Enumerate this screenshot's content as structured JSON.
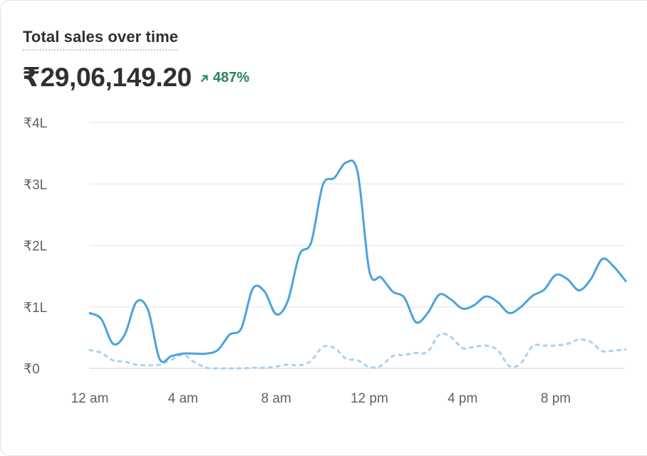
{
  "header": {
    "title": "Total sales over time",
    "total": "₹29,06,149.20",
    "change": "487%",
    "change_direction": "up",
    "change_color": "#29845a"
  },
  "chart_data": {
    "type": "line",
    "title": "Total sales over time",
    "xlabel": "",
    "ylabel": "",
    "x_tick_labels": [
      "12 am",
      "4 am",
      "8 am",
      "12 pm",
      "4 pm",
      "8 pm"
    ],
    "y_tick_labels": [
      "₹0",
      "₹1L",
      "₹2L",
      "₹3L",
      "₹4L"
    ],
    "y_tick_values": [
      0,
      100000,
      200000,
      300000,
      400000
    ],
    "ylim": [
      0,
      400000
    ],
    "grid": true,
    "legend": "none",
    "series": [
      {
        "style": "solid",
        "color": "#4aa3df",
        "points": [
          [
            0.0,
            90000
          ],
          [
            0.5,
            80000
          ],
          [
            1.0,
            40000
          ],
          [
            1.5,
            55000
          ],
          [
            2.0,
            108000
          ],
          [
            2.5,
            95000
          ],
          [
            3.0,
            15000
          ],
          [
            3.5,
            20000
          ],
          [
            4.0,
            24000
          ],
          [
            4.5,
            24000
          ],
          [
            5.0,
            24000
          ],
          [
            5.5,
            30000
          ],
          [
            6.0,
            55000
          ],
          [
            6.5,
            65000
          ],
          [
            7.0,
            130000
          ],
          [
            7.5,
            125000
          ],
          [
            8.0,
            88000
          ],
          [
            8.5,
            110000
          ],
          [
            9.0,
            185000
          ],
          [
            9.5,
            205000
          ],
          [
            10.0,
            298000
          ],
          [
            10.5,
            310000
          ],
          [
            11.0,
            335000
          ],
          [
            11.5,
            318000
          ],
          [
            12.0,
            158000
          ],
          [
            12.5,
            148000
          ],
          [
            13.0,
            125000
          ],
          [
            13.5,
            115000
          ],
          [
            14.0,
            75000
          ],
          [
            14.5,
            90000
          ],
          [
            15.0,
            120000
          ],
          [
            15.5,
            112000
          ],
          [
            16.0,
            97000
          ],
          [
            16.5,
            103000
          ],
          [
            17.0,
            117000
          ],
          [
            17.5,
            108000
          ],
          [
            18.0,
            90000
          ],
          [
            18.5,
            100000
          ],
          [
            19.0,
            118000
          ],
          [
            19.5,
            128000
          ],
          [
            20.0,
            152000
          ],
          [
            20.5,
            145000
          ],
          [
            21.0,
            127000
          ],
          [
            21.5,
            145000
          ],
          [
            22.0,
            178000
          ],
          [
            22.5,
            165000
          ],
          [
            23.0,
            142000
          ]
        ]
      },
      {
        "style": "dashed",
        "color": "#a9d2f0",
        "points": [
          [
            0.0,
            30000
          ],
          [
            0.5,
            25000
          ],
          [
            1.0,
            13000
          ],
          [
            1.5,
            11000
          ],
          [
            2.0,
            6000
          ],
          [
            2.5,
            5000
          ],
          [
            3.0,
            6000
          ],
          [
            3.5,
            14000
          ],
          [
            4.0,
            22000
          ],
          [
            4.5,
            10000
          ],
          [
            5.0,
            1000
          ],
          [
            5.5,
            0
          ],
          [
            6.0,
            0
          ],
          [
            6.5,
            0
          ],
          [
            7.0,
            1000
          ],
          [
            7.5,
            1000
          ],
          [
            8.0,
            3000
          ],
          [
            8.5,
            6000
          ],
          [
            9.0,
            5000
          ],
          [
            9.5,
            12000
          ],
          [
            10.0,
            35000
          ],
          [
            10.5,
            33000
          ],
          [
            11.0,
            16000
          ],
          [
            11.5,
            13000
          ],
          [
            12.0,
            2000
          ],
          [
            12.5,
            4000
          ],
          [
            13.0,
            20000
          ],
          [
            13.5,
            22000
          ],
          [
            14.0,
            25000
          ],
          [
            14.5,
            27000
          ],
          [
            15.0,
            55000
          ],
          [
            15.5,
            51000
          ],
          [
            16.0,
            33000
          ],
          [
            16.5,
            35000
          ],
          [
            17.0,
            37000
          ],
          [
            17.5,
            30000
          ],
          [
            18.0,
            4000
          ],
          [
            18.5,
            8000
          ],
          [
            19.0,
            36000
          ],
          [
            19.5,
            37000
          ],
          [
            20.0,
            37000
          ],
          [
            20.5,
            40000
          ],
          [
            21.0,
            47000
          ],
          [
            21.5,
            43000
          ],
          [
            22.0,
            28000
          ],
          [
            22.5,
            29000
          ],
          [
            23.0,
            31000
          ]
        ]
      }
    ]
  }
}
